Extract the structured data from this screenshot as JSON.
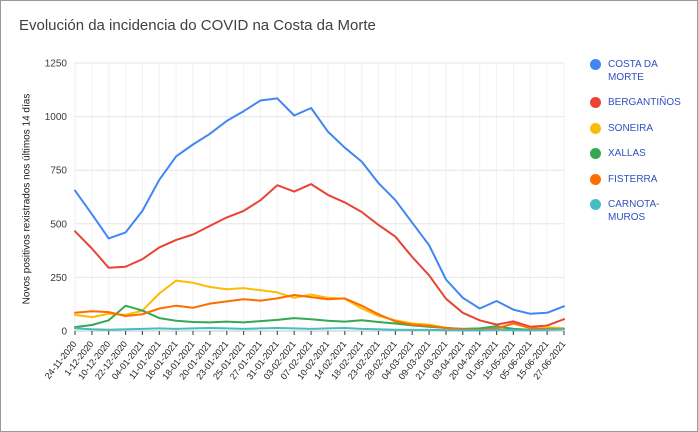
{
  "title": "Evolución da incidencia do COVID na Costa da Morte",
  "colors": {
    "title_text": "#3f3f3f",
    "legend_text": "#2f52c0",
    "grid": "#e6e6e6",
    "baseline": "#c6c6c6",
    "tick": "#555555"
  },
  "chart_data": {
    "type": "line",
    "title": "Evolución da incidencia do COVID na Costa da Morte",
    "xlabel": "",
    "ylabel": "Novos positivos rexistrados nos últimos 14 días",
    "ylim": [
      0,
      1250
    ],
    "yticks": [
      0,
      250,
      500,
      750,
      1000,
      1250
    ],
    "grid": true,
    "legend_position": "right",
    "categories": [
      "24-11-2020",
      "1-12-2020",
      "10-12-2020",
      "22-12-2020",
      "04-01-2021",
      "11-01-2021",
      "16-01-2021",
      "18-01-2021",
      "20-01-2021",
      "23-01-2021",
      "25-01-2021",
      "27-01-2021",
      "31-01-2021",
      "03-02-2021",
      "07-02-2021",
      "10-02-2021",
      "14-02-2021",
      "18-02-2021",
      "23-02-2021",
      "28-02-2021",
      "04-03-2021",
      "09-03-2021",
      "21-03-2021",
      "03-04-2021",
      "20-04-2021",
      "01-05-2021",
      "15-05-2021",
      "05-06-2021",
      "15-06-2021",
      "27-06-2021"
    ],
    "series": [
      {
        "name": "COSTA DA MORTE",
        "color": "#4285F4",
        "values": [
          655,
          545,
          432,
          460,
          560,
          705,
          815,
          870,
          920,
          980,
          1025,
          1075,
          1085,
          1005,
          1040,
          930,
          855,
          790,
          690,
          610,
          505,
          400,
          240,
          155,
          105,
          140,
          100,
          80,
          85,
          115
        ]
      },
      {
        "name": "BERGANTIÑOS",
        "color": "#EA4335",
        "values": [
          465,
          385,
          295,
          300,
          335,
          390,
          425,
          450,
          490,
          530,
          560,
          610,
          680,
          650,
          685,
          635,
          600,
          555,
          495,
          440,
          345,
          260,
          150,
          85,
          50,
          30,
          45,
          20,
          25,
          55
        ]
      },
      {
        "name": "SONEIRA",
        "color": "#FBBC04",
        "values": [
          75,
          65,
          80,
          75,
          95,
          175,
          235,
          225,
          205,
          195,
          200,
          190,
          180,
          155,
          170,
          155,
          150,
          105,
          70,
          50,
          35,
          30,
          15,
          8,
          5,
          10,
          6,
          5,
          18,
          12
        ]
      },
      {
        "name": "XALLAS",
        "color": "#34A853",
        "values": [
          18,
          28,
          50,
          118,
          95,
          60,
          48,
          42,
          40,
          44,
          40,
          46,
          52,
          60,
          55,
          48,
          44,
          50,
          42,
          35,
          26,
          20,
          14,
          10,
          12,
          22,
          10,
          6,
          10,
          10
        ]
      },
      {
        "name": "FISTERRA",
        "color": "#FF6D01",
        "values": [
          85,
          92,
          88,
          70,
          78,
          105,
          118,
          108,
          128,
          138,
          148,
          142,
          152,
          168,
          158,
          148,
          152,
          118,
          78,
          45,
          30,
          24,
          14,
          8,
          5,
          12,
          35,
          14,
          8,
          10
        ]
      },
      {
        "name": "CARNOTA-MUROS",
        "color": "#46BDC6",
        "values": [
          12,
          8,
          6,
          8,
          10,
          12,
          10,
          12,
          14,
          12,
          10,
          12,
          14,
          12,
          10,
          12,
          14,
          10,
          8,
          6,
          5,
          5,
          4,
          3,
          3,
          6,
          4,
          3,
          5,
          8
        ]
      }
    ]
  }
}
